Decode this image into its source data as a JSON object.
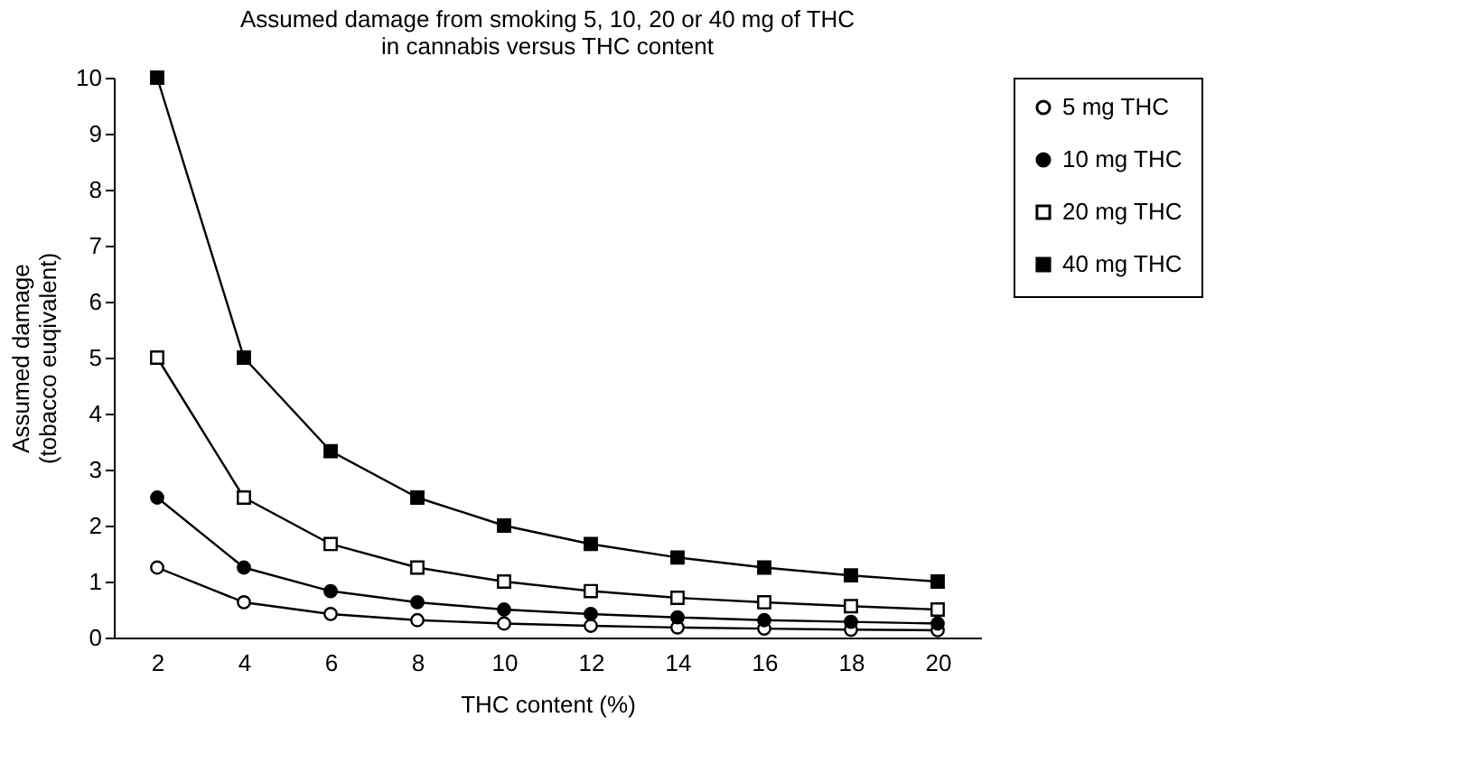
{
  "chart_data": {
    "type": "line",
    "title": [
      "Assumed damage from smoking 5, 10, 20 or 40 mg of THC",
      "in cannabis versus THC content"
    ],
    "xlabel": "THC content (%)",
    "ylabel": [
      "Assumed damage",
      "(tobacco euqivalent)"
    ],
    "categories": [
      "2",
      "4",
      "6",
      "8",
      "10",
      "12",
      "14",
      "16",
      "18",
      "20"
    ],
    "series": [
      {
        "name": "5 mg THC",
        "color": "#000000",
        "marker": "circle",
        "values": [
          1.25,
          0.63,
          0.42,
          0.31,
          0.25,
          0.21,
          0.18,
          0.16,
          0.14,
          0.13
        ]
      },
      {
        "name": "10 mg THC",
        "color": "#000000",
        "marker": "circle",
        "values": [
          2.5,
          1.25,
          0.83,
          0.63,
          0.5,
          0.42,
          0.36,
          0.31,
          0.28,
          0.25
        ]
      },
      {
        "name": "20 mg THC",
        "color": "#000000",
        "marker": "square",
        "values": [
          5,
          2.5,
          1.67,
          1.25,
          1,
          0.83,
          0.71,
          0.63,
          0.56,
          0.5
        ]
      },
      {
        "name": "40 mg THC",
        "color": "#000000",
        "marker": "square",
        "values": [
          10,
          5,
          3.33,
          2.5,
          2,
          1.67,
          1.43,
          1.25,
          1.11,
          1
        ]
      }
    ],
    "ylim": [
      0,
      10
    ],
    "yticks": [
      0,
      1,
      2,
      3,
      4,
      5,
      6,
      7,
      8,
      9,
      10
    ],
    "grid": false,
    "legend": "right",
    "line_style": "solid"
  }
}
